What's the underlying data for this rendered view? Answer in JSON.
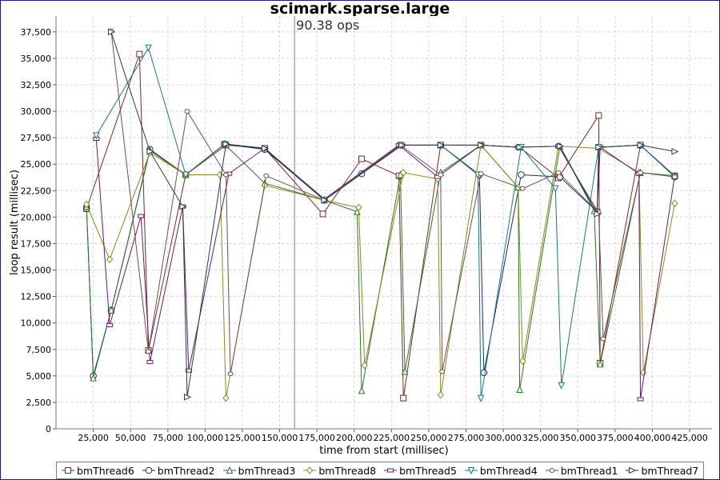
{
  "title": "scimark.sparse.large",
  "chart_data": {
    "type": "line",
    "title": "scimark.sparse.large",
    "annotation": "90.38 ops",
    "annotation_x": 160000,
    "xlabel": "time from start (millisec)",
    "ylabel": "loop result (millisec)",
    "xlim": [
      0,
      440000
    ],
    "ylim": [
      0,
      39000
    ],
    "x_ticks": [
      25000,
      50000,
      75000,
      100000,
      125000,
      150000,
      175000,
      200000,
      225000,
      250000,
      275000,
      300000,
      325000,
      350000,
      375000,
      400000,
      425000
    ],
    "x_tick_labels": [
      "25,000",
      "50,000",
      "75,000",
      "100,000",
      "125,000",
      "150,000",
      "175,000",
      "200,000",
      "225,000",
      "250,000",
      "275,000",
      "300,000",
      "325,000",
      "350,000",
      "375,000",
      "400,000",
      "425,000"
    ],
    "y_ticks": [
      0,
      2500,
      5000,
      7500,
      10000,
      12500,
      15000,
      17500,
      20000,
      22500,
      25000,
      27500,
      30000,
      32500,
      35000,
      37500
    ],
    "y_tick_labels": [
      "0",
      "2,500",
      "5,000",
      "7,500",
      "10,000",
      "12,500",
      "15,000",
      "17,500",
      "20,000",
      "22,500",
      "25,000",
      "27,500",
      "30,000",
      "32,500",
      "35,000",
      "37,500"
    ],
    "grid": true,
    "legend_position": "bottom",
    "series": [
      {
        "name": "bmThread6",
        "color": "#7a2a22",
        "marker": "square",
        "points": [
          [
            20500,
            20800
          ],
          [
            56000,
            35400
          ],
          [
            62000,
            7400
          ],
          [
            87000,
            24000
          ],
          [
            114000,
            26800
          ],
          [
            140000,
            26500
          ],
          [
            179000,
            20300
          ],
          [
            205000,
            25500
          ],
          [
            230000,
            23900
          ],
          [
            233000,
            2900
          ],
          [
            258000,
            26800
          ],
          [
            285000,
            26800
          ],
          [
            311000,
            26600
          ],
          [
            337000,
            23700
          ],
          [
            364000,
            29600
          ],
          [
            365000,
            6200
          ],
          [
            392000,
            26800
          ],
          [
            415000,
            23900
          ]
        ]
      },
      {
        "name": "bmThread2",
        "color": "#1a2a6a",
        "marker": "circle",
        "points": [
          [
            20500,
            20800
          ],
          [
            25000,
            5000
          ],
          [
            37000,
            11200
          ],
          [
            63000,
            26400
          ],
          [
            87000,
            24000
          ],
          [
            113000,
            26900
          ],
          [
            140000,
            26400
          ],
          [
            180000,
            21600
          ],
          [
            205000,
            24100
          ],
          [
            232000,
            26800
          ],
          [
            258000,
            26800
          ],
          [
            284000,
            24000
          ],
          [
            287000,
            5300
          ],
          [
            312000,
            24000
          ],
          [
            338000,
            23800
          ],
          [
            363000,
            20500
          ],
          [
            364000,
            26600
          ],
          [
            392000,
            26800
          ],
          [
            415000,
            23800
          ]
        ]
      },
      {
        "name": "bmThread3",
        "color": "#237a23",
        "marker": "triangle",
        "points": [
          [
            20500,
            21000
          ],
          [
            25000,
            4800
          ],
          [
            37000,
            11200
          ],
          [
            63000,
            26300
          ],
          [
            87000,
            24000
          ],
          [
            113000,
            26900
          ],
          [
            140000,
            23200
          ],
          [
            180000,
            21600
          ],
          [
            202000,
            20500
          ],
          [
            205000,
            3600
          ],
          [
            231000,
            24000
          ],
          [
            234000,
            5400
          ],
          [
            258000,
            24200
          ],
          [
            285000,
            26800
          ],
          [
            310000,
            22800
          ],
          [
            311000,
            3700
          ],
          [
            338000,
            26700
          ],
          [
            361000,
            20600
          ],
          [
            365000,
            6100
          ],
          [
            392000,
            24200
          ],
          [
            415000,
            23900
          ]
        ]
      },
      {
        "name": "bmThread8",
        "color": "#8a8a1a",
        "marker": "diamond",
        "points": [
          [
            20500,
            21200
          ],
          [
            36000,
            16000
          ],
          [
            63000,
            26100
          ],
          [
            87000,
            24000
          ],
          [
            110000,
            24000
          ],
          [
            114000,
            2900
          ],
          [
            140000,
            23000
          ],
          [
            180000,
            21600
          ],
          [
            203000,
            20900
          ],
          [
            207000,
            6000
          ],
          [
            233000,
            24200
          ],
          [
            256000,
            23600
          ],
          [
            258000,
            3200
          ],
          [
            285000,
            26800
          ],
          [
            310000,
            22800
          ],
          [
            313000,
            6400
          ],
          [
            337000,
            26700
          ],
          [
            364000,
            26500
          ],
          [
            391000,
            24200
          ],
          [
            394000,
            5300
          ],
          [
            415000,
            21300
          ]
        ]
      },
      {
        "name": "bmThread5",
        "color": "#6a1a6a",
        "marker": "hline",
        "points": [
          [
            27000,
            27400
          ],
          [
            36000,
            9800
          ],
          [
            57000,
            20100
          ],
          [
            63000,
            6300
          ],
          [
            85000,
            21000
          ],
          [
            89000,
            5500
          ],
          [
            116000,
            24100
          ],
          [
            140000,
            26500
          ],
          [
            180000,
            21700
          ],
          [
            230000,
            26800
          ],
          [
            256000,
            23800
          ],
          [
            285000,
            26800
          ],
          [
            310000,
            26600
          ],
          [
            337000,
            26700
          ],
          [
            363000,
            20600
          ],
          [
            365000,
            26600
          ],
          [
            391000,
            24100
          ],
          [
            392000,
            2800
          ],
          [
            415000,
            23900
          ]
        ]
      },
      {
        "name": "bmThread4",
        "color": "#1a7a7a",
        "marker": "triangle-down",
        "points": [
          [
            27000,
            27700
          ],
          [
            62000,
            36000
          ],
          [
            87000,
            24000
          ],
          [
            113000,
            26900
          ],
          [
            140000,
            26500
          ],
          [
            180000,
            21600
          ],
          [
            231000,
            26800
          ],
          [
            258000,
            26800
          ],
          [
            283000,
            24000
          ],
          [
            285000,
            2900
          ],
          [
            312000,
            26600
          ],
          [
            335000,
            22700
          ],
          [
            339000,
            4100
          ],
          [
            364000,
            26600
          ],
          [
            392000,
            26800
          ],
          [
            415000,
            23800
          ]
        ]
      },
      {
        "name": "bmThread1",
        "color": "#7a4a4a",
        "marker": "circle-small",
        "points": [
          [
            37000,
            37600
          ],
          [
            62000,
            7300
          ],
          [
            88000,
            30000
          ],
          [
            114000,
            24000
          ],
          [
            117000,
            5200
          ],
          [
            141000,
            23900
          ],
          [
            180000,
            21600
          ],
          [
            231000,
            26800
          ],
          [
            258000,
            24000
          ],
          [
            259000,
            5400
          ],
          [
            285000,
            24100
          ],
          [
            313000,
            22700
          ],
          [
            337000,
            24200
          ],
          [
            364000,
            20400
          ],
          [
            367000,
            8500
          ],
          [
            392000,
            24200
          ],
          [
            415000,
            23800
          ]
        ]
      },
      {
        "name": "bmThread7",
        "color": "#2a3a4a",
        "marker": "triangle-right",
        "points": [
          [
            37000,
            37500
          ],
          [
            63000,
            26200
          ],
          [
            85000,
            21000
          ],
          [
            88000,
            3000
          ],
          [
            114000,
            26900
          ],
          [
            140000,
            26500
          ],
          [
            180000,
            21600
          ],
          [
            232000,
            26800
          ],
          [
            258000,
            26800
          ],
          [
            285000,
            26800
          ],
          [
            311000,
            26600
          ],
          [
            338000,
            26700
          ],
          [
            363000,
            20300
          ],
          [
            364000,
            26600
          ],
          [
            392000,
            26800
          ],
          [
            415000,
            26200
          ]
        ]
      }
    ]
  }
}
